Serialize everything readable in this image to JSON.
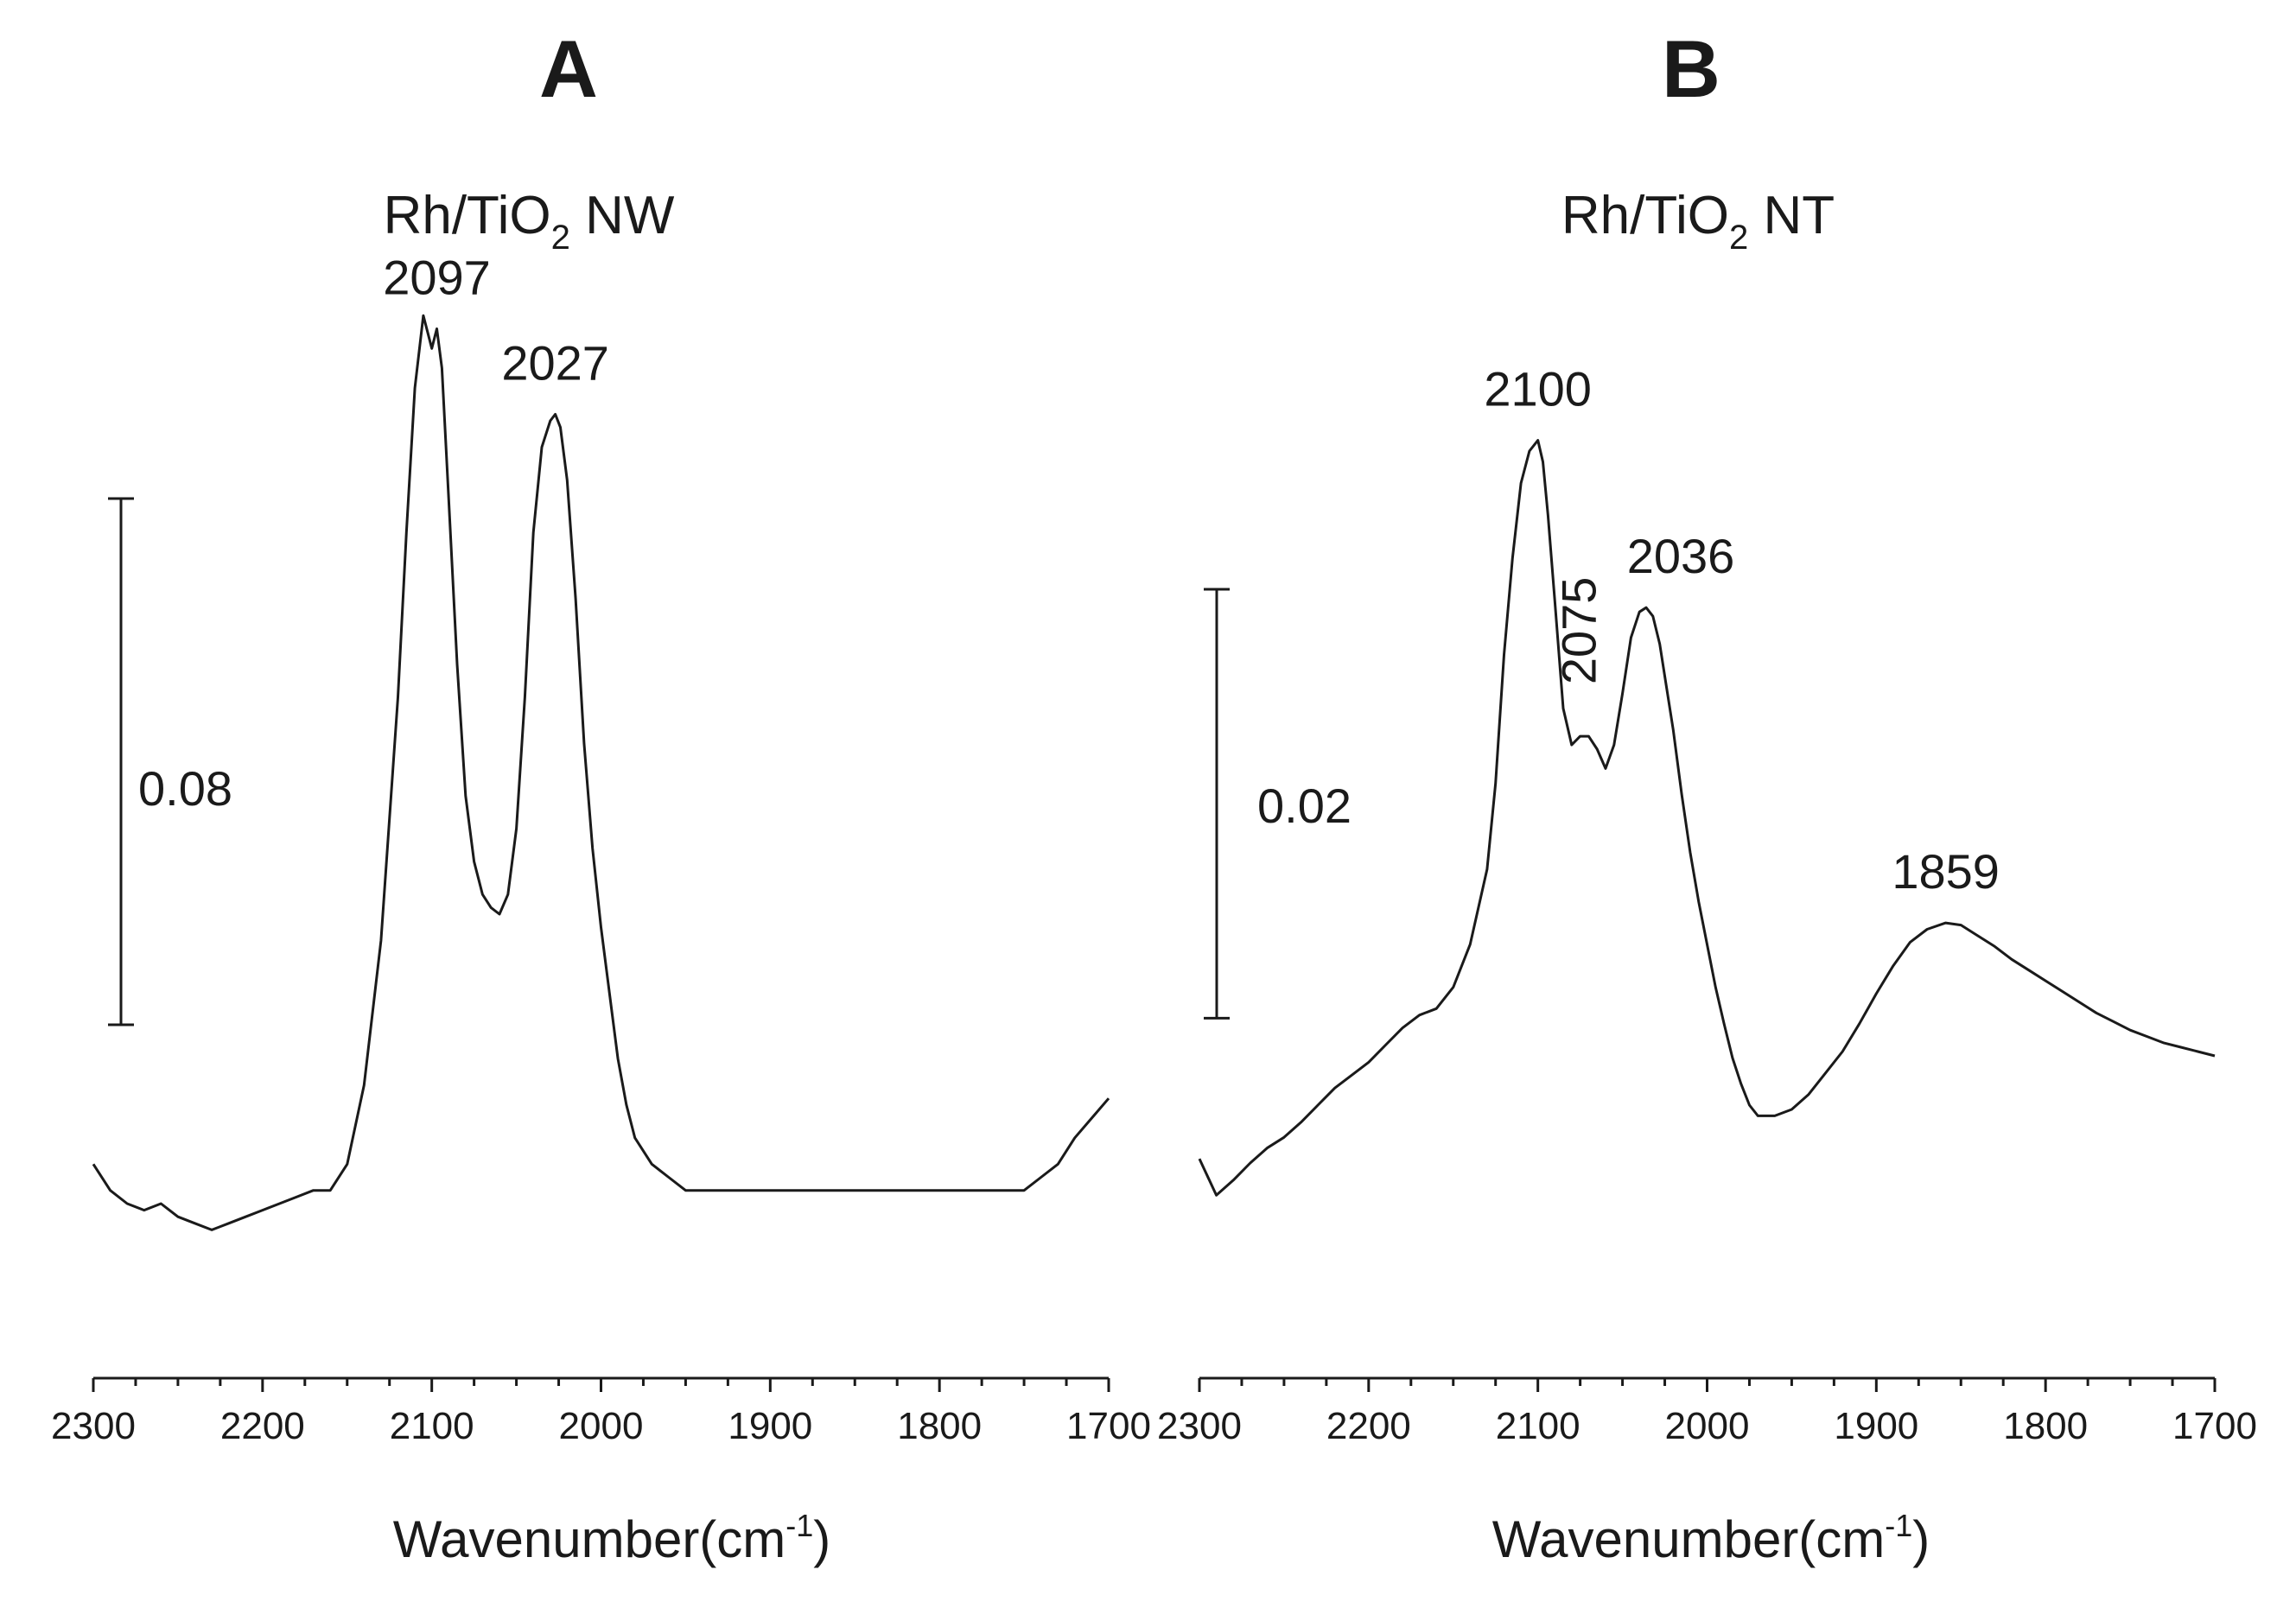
{
  "chart_data": [
    {
      "type": "line",
      "panel_label": "A",
      "title": "Rh/TiO",
      "title_subscript": "2",
      "title_suffix": " NW",
      "xlabel": "Wavenumber(cm",
      "xlabel_sup": "-1",
      "xlabel_close": ")",
      "xlim": [
        2300,
        1700
      ],
      "x_ticks": [
        2300,
        2200,
        2100,
        2000,
        1900,
        1800,
        1700
      ],
      "scale_bar": {
        "label": "0.08",
        "value": 0.08
      },
      "ylim": [
        -0.02,
        0.135
      ],
      "peaks": [
        {
          "label": "2097",
          "x": 2097
        },
        {
          "label": "2027",
          "x": 2027
        }
      ],
      "series": [
        {
          "name": "Rh/TiO2 NW",
          "x": [
            2300,
            2290,
            2280,
            2270,
            2260,
            2250,
            2240,
            2230,
            2220,
            2210,
            2200,
            2190,
            2180,
            2170,
            2160,
            2150,
            2140,
            2130,
            2120,
            2115,
            2110,
            2105,
            2100,
            2097,
            2094,
            2090,
            2085,
            2080,
            2075,
            2070,
            2065,
            2060,
            2055,
            2050,
            2045,
            2040,
            2035,
            2030,
            2027,
            2024,
            2020,
            2015,
            2010,
            2005,
            2000,
            1995,
            1990,
            1985,
            1980,
            1970,
            1960,
            1950,
            1940,
            1920,
            1900,
            1880,
            1860,
            1840,
            1820,
            1800,
            1790,
            1780,
            1770,
            1760,
            1750,
            1740,
            1730,
            1720,
            1710,
            1700
          ],
          "y": [
            0.004,
            0.0,
            -0.002,
            -0.003,
            -0.002,
            -0.004,
            -0.005,
            -0.006,
            -0.005,
            -0.004,
            -0.003,
            -0.002,
            -0.001,
            0.0,
            0.0,
            0.004,
            0.016,
            0.038,
            0.075,
            0.1,
            0.122,
            0.133,
            0.128,
            0.131,
            0.125,
            0.105,
            0.08,
            0.06,
            0.05,
            0.045,
            0.043,
            0.042,
            0.045,
            0.055,
            0.075,
            0.1,
            0.113,
            0.117,
            0.118,
            0.116,
            0.108,
            0.09,
            0.068,
            0.052,
            0.04,
            0.03,
            0.02,
            0.013,
            0.008,
            0.004,
            0.002,
            0.0,
            0.0,
            0.0,
            0.0,
            0.0,
            0.0,
            0.0,
            0.0,
            0.0,
            0.0,
            0.0,
            0.0,
            0.0,
            0.0,
            0.002,
            0.004,
            0.008,
            0.011,
            0.014
          ]
        }
      ]
    },
    {
      "type": "line",
      "panel_label": "B",
      "title": "Rh/TiO",
      "title_subscript": "2",
      "title_suffix": " NT",
      "xlabel": "Wavenumber(cm",
      "xlabel_sup": "-1",
      "xlabel_close": ")",
      "xlim": [
        2300,
        1700
      ],
      "x_ticks": [
        2300,
        2200,
        2100,
        2000,
        1900,
        1800,
        1700
      ],
      "scale_bar": {
        "label": "0.02",
        "value": 0.02
      },
      "ylim": [
        -0.0055,
        0.036
      ],
      "peaks": [
        {
          "label": "2100",
          "x": 2100
        },
        {
          "label": "2075",
          "x": 2075,
          "rotated": true
        },
        {
          "label": "2036",
          "x": 2036
        },
        {
          "label": "1859",
          "x": 1859
        }
      ],
      "series": [
        {
          "name": "Rh/TiO2 NT",
          "x": [
            2300,
            2290,
            2280,
            2270,
            2260,
            2250,
            2240,
            2230,
            2220,
            2210,
            2200,
            2190,
            2180,
            2170,
            2160,
            2150,
            2140,
            2130,
            2125,
            2120,
            2115,
            2110,
            2105,
            2100,
            2097,
            2094,
            2090,
            2085,
            2080,
            2075,
            2070,
            2065,
            2060,
            2055,
            2050,
            2045,
            2040,
            2036,
            2032,
            2028,
            2024,
            2020,
            2015,
            2010,
            2005,
            2000,
            1995,
            1990,
            1985,
            1980,
            1975,
            1970,
            1960,
            1950,
            1940,
            1930,
            1920,
            1910,
            1900,
            1890,
            1880,
            1870,
            1859,
            1850,
            1840,
            1830,
            1820,
            1810,
            1800,
            1790,
            1780,
            1770,
            1760,
            1750,
            1740,
            1730,
            1720,
            1710,
            1700
          ],
          "y": [
            0.0005,
            -0.0012,
            -0.0005,
            0.0003,
            0.001,
            0.0015,
            0.0022,
            0.003,
            0.0038,
            0.0044,
            0.005,
            0.0058,
            0.0066,
            0.0072,
            0.0075,
            0.0085,
            0.0105,
            0.014,
            0.018,
            0.024,
            0.0285,
            0.032,
            0.0335,
            0.034,
            0.033,
            0.0305,
            0.0265,
            0.0215,
            0.0198,
            0.0202,
            0.0202,
            0.0196,
            0.0187,
            0.0198,
            0.0222,
            0.0248,
            0.026,
            0.0262,
            0.0258,
            0.0245,
            0.0225,
            0.0205,
            0.0175,
            0.0148,
            0.0125,
            0.0105,
            0.0085,
            0.0068,
            0.0052,
            0.004,
            0.003,
            0.0025,
            0.0025,
            0.0028,
            0.0035,
            0.0045,
            0.0055,
            0.0068,
            0.0082,
            0.0095,
            0.0106,
            0.0112,
            0.0115,
            0.0114,
            0.0109,
            0.0104,
            0.0098,
            0.0093,
            0.0088,
            0.0083,
            0.0078,
            0.0073,
            0.0069,
            0.0065,
            0.0062,
            0.0059,
            0.0057,
            0.0055,
            0.0053
          ]
        }
      ]
    }
  ]
}
